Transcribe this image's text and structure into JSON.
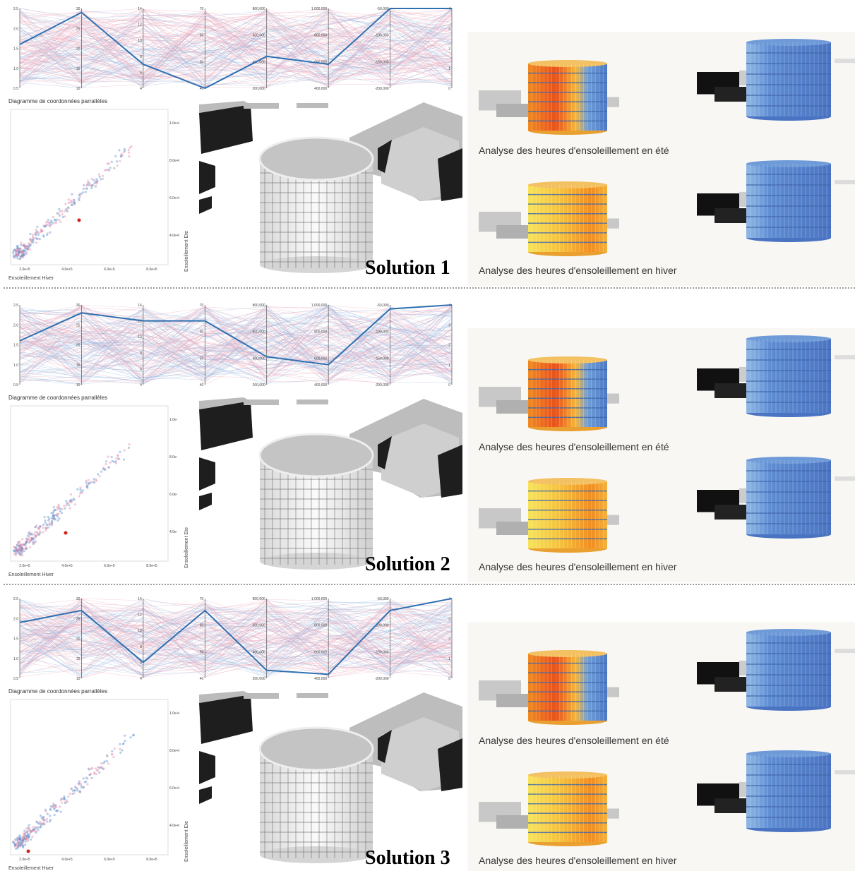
{
  "solutions": [
    {
      "title": "Solution 1",
      "parallel": {
        "caption": "Diagramme de coordonnées parrallèles",
        "ticks": [
          [
            "0.5",
            "1.0",
            "1.5",
            "2.0",
            "2.5"
          ],
          [
            "10",
            "15",
            "20",
            "25",
            "30"
          ],
          [
            "4",
            "6",
            "8",
            "10",
            "12",
            "14"
          ],
          [
            "40",
            "50",
            "60",
            "70"
          ],
          [
            "200,000",
            "400,000",
            "600,000",
            "800,000"
          ],
          [
            "400,000",
            "600,000",
            "800,000",
            "1,000,000"
          ],
          [
            "-200,000",
            "-150,000",
            "-100,000",
            "-50,000"
          ],
          [
            "0",
            "1",
            "2",
            "3",
            "4"
          ]
        ]
      },
      "scatter": {
        "xlabel": "Ensoleillement Hiver",
        "ylabel": "Ensoleillement Ete",
        "xticks": [
          "2.0e+5",
          "4.0e+5",
          "6.0e+5",
          "8.0e+5"
        ],
        "yticks": [
          "4.0e+t",
          "6.0e+t",
          "8.0e+t",
          "1.0e+t"
        ]
      },
      "summer_caption": "Analyse des heures d'ensoleillement en été",
      "winter_caption": "Analyse des heures d'ensoleillement en hiver"
    },
    {
      "title": "Solution 2",
      "parallel": {
        "caption": "Diagramme de coordonnées parrallèles",
        "ticks": [
          [
            "0.5",
            "1.0",
            "1.5",
            "2.0",
            "2.5"
          ],
          [
            "10",
            "15",
            "20",
            "25",
            "30"
          ],
          [
            "4",
            "6",
            "8",
            "10",
            "12",
            "14"
          ],
          [
            "40",
            "50",
            "60",
            "70"
          ],
          [
            "200,000",
            "400,000",
            "600,000",
            "800,000"
          ],
          [
            "400,000",
            "600,000",
            "800,000",
            "1,000,000"
          ],
          [
            "-200,000",
            "-150,000",
            "-100,000",
            "-50,000"
          ],
          [
            "0",
            "1",
            "2",
            "3",
            "4"
          ]
        ]
      },
      "scatter": {
        "xlabel": "Ensoleillement Hiver",
        "ylabel": "Ensoleillement Ete",
        "xticks": [
          "2.0e+5",
          "4.0e+5",
          "6.0e+5",
          "8.0e+5"
        ],
        "yticks": [
          "4.0e-",
          "6.0e-",
          "8.0e-",
          "1.0e-"
        ]
      },
      "summer_caption": "Analyse des heures d'ensoleillement en été",
      "winter_caption": "Analyse des heures d'ensoleillement en hiver"
    },
    {
      "title": "Solution 3",
      "parallel": {
        "caption": "Diagramme de coordonnées parrallèles",
        "ticks": [
          [
            "0.5",
            "1.0",
            "1.5",
            "2.0",
            "2.5"
          ],
          [
            "10",
            "15",
            "20",
            "25",
            "30"
          ],
          [
            "4",
            "6",
            "8",
            "10",
            "12",
            "14"
          ],
          [
            "40",
            "50",
            "60",
            "70"
          ],
          [
            "200,000",
            "400,000",
            "600,000",
            "800,000"
          ],
          [
            "400,000",
            "600,000",
            "800,000",
            "1,000,000"
          ],
          [
            "-200,000",
            "-150,000",
            "-100,000",
            "-50,000"
          ],
          [
            "0",
            "1",
            "2",
            "3",
            "4"
          ]
        ]
      },
      "scatter": {
        "xlabel": "Ensoleillement Hiver",
        "ylabel": "Ensoleillement Ete",
        "xticks": [
          "2.0e+5",
          "4.0e+5",
          "6.0e+5",
          "8.0e+5"
        ],
        "yticks": [
          "4.0e+t",
          "6.0e+t",
          "8.0e+t",
          "1.0e+t"
        ]
      },
      "summer_caption": "Analyse des heures d'ensoleillement en été",
      "winter_caption": "Analyse des heures d'ensoleillement en hiver"
    }
  ]
}
